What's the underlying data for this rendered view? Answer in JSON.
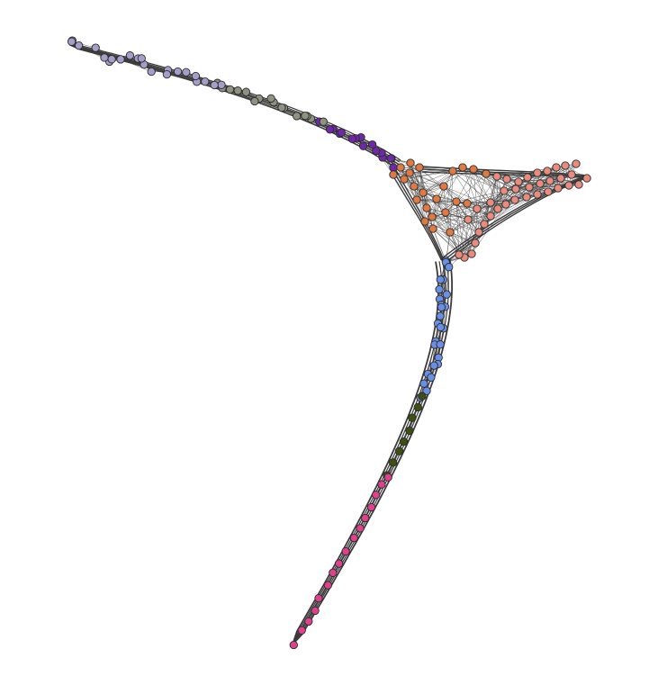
{
  "graph": {
    "type": "network-embedding",
    "clusters": [
      {
        "id": "c1",
        "color": "#a49fc9"
      },
      {
        "id": "c2",
        "color": "#8e9282"
      },
      {
        "id": "c3",
        "color": "#6e2aa6"
      },
      {
        "id": "c4",
        "color": "#e07a45"
      },
      {
        "id": "c5",
        "color": "#e88c80"
      },
      {
        "id": "c6",
        "color": "#6c8fe6"
      },
      {
        "id": "c7",
        "color": "#3d4f12"
      },
      {
        "id": "c8",
        "color": "#e0418c"
      }
    ]
  }
}
